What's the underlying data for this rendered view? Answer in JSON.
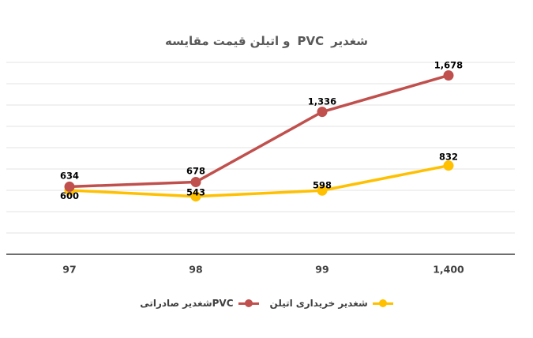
{
  "chart_data": {
    "type": "line",
    "title": "مقایسه قیمت اتیلن و PVC شغدیر",
    "title_words": [
      "مقایسه",
      "قیمت",
      "اتیلن",
      "و",
      "PVC",
      "شغدیر"
    ],
    "categories": [
      "97",
      "98",
      "99",
      "1,400"
    ],
    "series": [
      {
        "name": "اتیلن خریداری شغدیر",
        "legend_words": [
          "اتیلن",
          "خریداری",
          "شغدیر"
        ],
        "color": "#FFC000",
        "values": [
          600,
          543,
          598,
          832
        ],
        "labels": [
          "600",
          "543",
          "598",
          "832"
        ]
      },
      {
        "name": "PVC صادراتی شغدیر",
        "legend_words": [
          "صادراتی",
          "شغدیرPVC"
        ],
        "color": "#C0504D",
        "values": [
          634,
          678,
          1336,
          1678
        ],
        "labels": [
          "634",
          "678",
          "1,336",
          "1,678"
        ]
      }
    ],
    "ylim": [
      0,
      1800
    ],
    "grid_step": 200,
    "grid": "horizontal-only",
    "y_tick_labels_visible": false,
    "legend_position": "bottom",
    "colors": {
      "gridline": "#E3E3E3",
      "axis_line": "#6E6E6E",
      "data_label_text": "#000000",
      "axis_text": "#404040",
      "title_text": "#595959",
      "legend_text": "#404040",
      "background": "#FFFFFF"
    }
  }
}
